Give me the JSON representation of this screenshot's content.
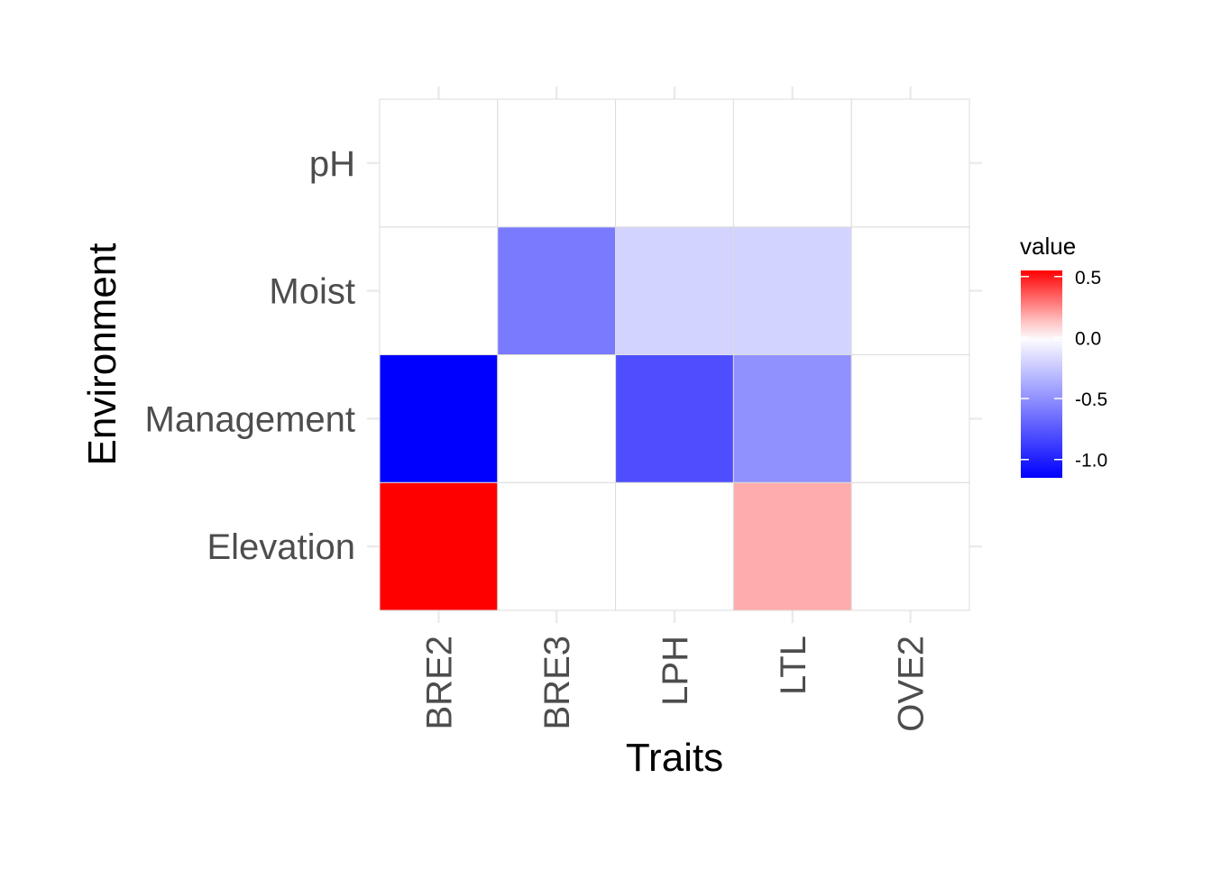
{
  "chart_data": {
    "type": "heatmap",
    "xlabel": "Traits",
    "ylabel": "Environment",
    "x_categories": [
      "BRE2",
      "BRE3",
      "LPH",
      "LTL",
      "OVE2"
    ],
    "y_categories": [
      "Elevation",
      "Management",
      "Moist",
      "pH"
    ],
    "values": [
      [
        0.55,
        0.0,
        0.0,
        0.18,
        0.0
      ],
      [
        -1.15,
        0.0,
        -0.8,
        -0.5,
        0.0
      ],
      [
        0.0,
        -0.6,
        -0.2,
        -0.2,
        0.0
      ],
      [
        0.0,
        0.0,
        0.0,
        0.0,
        0.0
      ]
    ],
    "legend": {
      "title": "value",
      "placement": "right",
      "ticks": [
        {
          "value": 0.5,
          "label": "0.5"
        },
        {
          "value": 0.0,
          "label": "0.0"
        },
        {
          "value": -0.5,
          "label": "-0.5"
        },
        {
          "value": -1.0,
          "label": "-1.0"
        }
      ],
      "range": [
        -1.15,
        0.55
      ]
    },
    "colors": {
      "high": "#ff0000",
      "mid": "#ffffff",
      "low": "#0000ff"
    },
    "grid": true
  }
}
